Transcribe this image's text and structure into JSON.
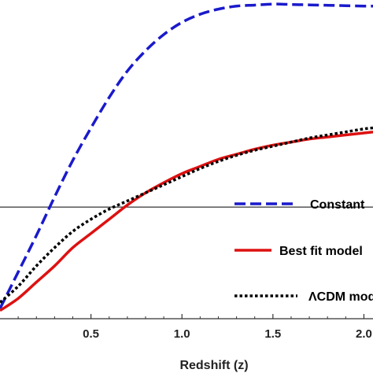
{
  "chart_data": {
    "type": "line",
    "xlabel": "Redshift (z)",
    "ylabel": "",
    "xlim": [
      0.0,
      2.05
    ],
    "ylim": [
      -0.55,
      1.02
    ],
    "x_ticks": [
      0.5,
      1.0,
      1.5,
      2.0
    ],
    "x_tick_labels": [
      "0.5",
      "1.0",
      "1.5",
      "2.0"
    ],
    "reference_line": {
      "y": 0.0,
      "color": "#000000"
    },
    "legend_position": "right",
    "series": [
      {
        "name": "Constant",
        "color": "#1a1acc",
        "dash": "dashed",
        "x": [
          0.0,
          0.1,
          0.2,
          0.3,
          0.4,
          0.5,
          0.6,
          0.7,
          0.8,
          0.9,
          1.0,
          1.1,
          1.2,
          1.3,
          1.4,
          1.5,
          1.6,
          1.7,
          1.8,
          1.9,
          2.0,
          2.05
        ],
        "y": [
          -0.5,
          -0.32,
          -0.14,
          0.05,
          0.23,
          0.39,
          0.54,
          0.67,
          0.77,
          0.85,
          0.91,
          0.95,
          0.975,
          0.99,
          0.995,
          1.0,
          0.998,
          0.996,
          0.994,
          0.992,
          0.99,
          0.99
        ]
      },
      {
        "name": "Best fit model",
        "color": "#dd1111",
        "dash": "solid",
        "x": [
          0.0,
          0.1,
          0.2,
          0.3,
          0.4,
          0.5,
          0.6,
          0.7,
          0.8,
          0.9,
          1.0,
          1.1,
          1.2,
          1.3,
          1.4,
          1.5,
          1.6,
          1.7,
          1.8,
          1.9,
          2.0,
          2.05
        ],
        "y": [
          -0.51,
          -0.45,
          -0.37,
          -0.29,
          -0.2,
          -0.13,
          -0.06,
          0.01,
          0.07,
          0.12,
          0.165,
          0.2,
          0.235,
          0.26,
          0.285,
          0.305,
          0.32,
          0.335,
          0.345,
          0.355,
          0.365,
          0.37
        ]
      },
      {
        "name": "ΛCDM model",
        "color": "#000000",
        "dash": "dotted",
        "x": [
          0.0,
          0.1,
          0.2,
          0.3,
          0.4,
          0.5,
          0.6,
          0.7,
          0.8,
          0.9,
          1.0,
          1.1,
          1.2,
          1.3,
          1.4,
          1.5,
          1.6,
          1.7,
          1.8,
          1.9,
          2.0,
          2.05
        ],
        "y": [
          -0.47,
          -0.39,
          -0.29,
          -0.2,
          -0.12,
          -0.06,
          -0.01,
          0.03,
          0.07,
          0.11,
          0.15,
          0.19,
          0.225,
          0.255,
          0.28,
          0.3,
          0.32,
          0.34,
          0.355,
          0.37,
          0.385,
          0.39
        ]
      }
    ]
  },
  "legend": {
    "constant": "Constant",
    "best_fit": "Best fit model",
    "lcdm": "ΛCDM model"
  }
}
